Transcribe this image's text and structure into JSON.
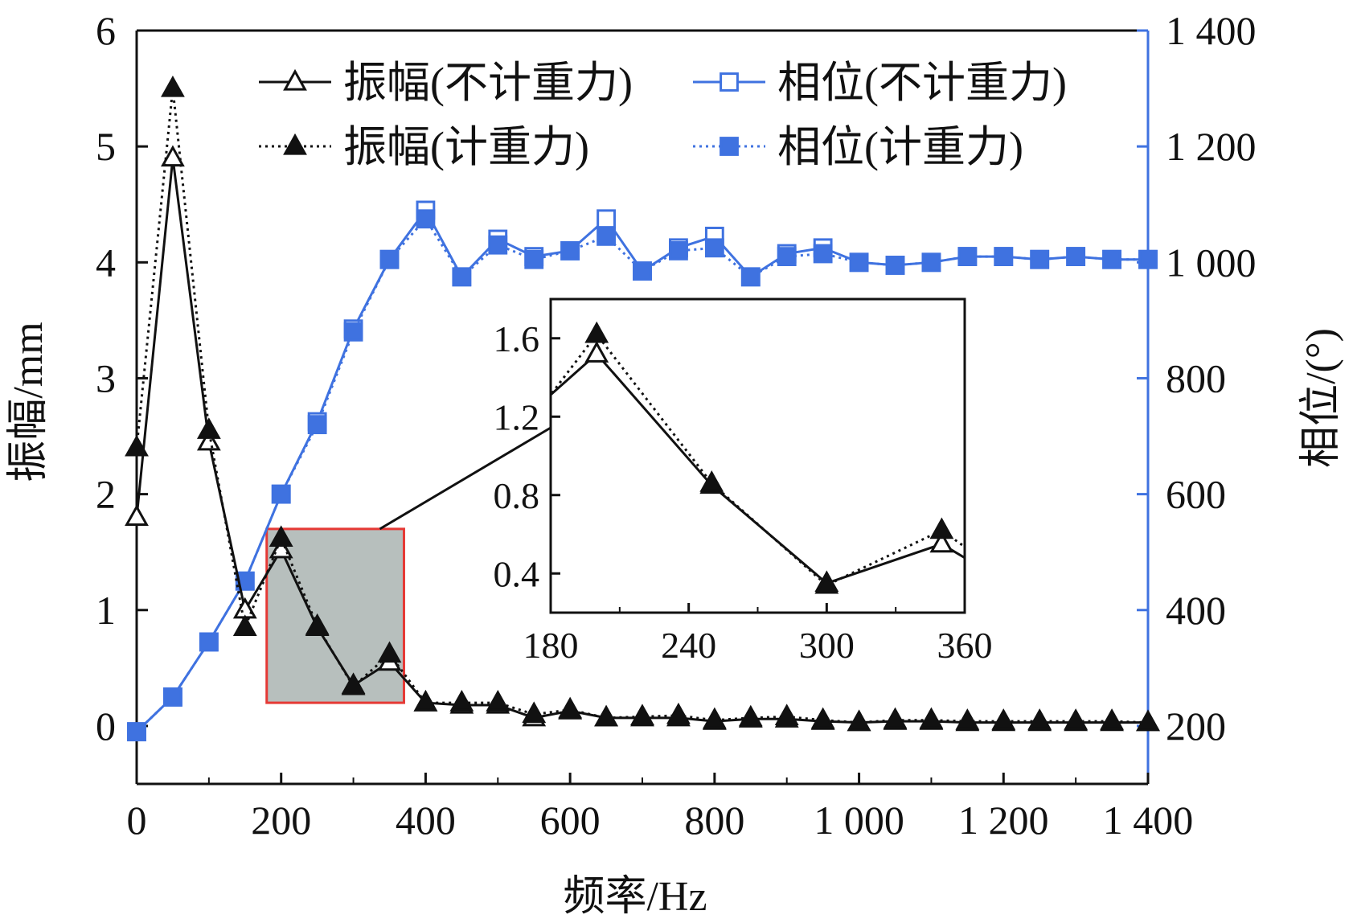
{
  "chart_data": {
    "type": "line",
    "xlabel": "频率/Hz",
    "ylabel_left": "振幅/mm",
    "ylabel_right": "相位/(°)",
    "xlim": [
      0,
      1400
    ],
    "ylim_left": [
      -0.5,
      6
    ],
    "ylim_right": [
      100,
      1400
    ],
    "x_ticks": [
      0,
      200,
      400,
      600,
      800,
      1000,
      1200,
      1400
    ],
    "x_tick_labels": [
      "0",
      "200",
      "400",
      "600",
      "800",
      "1 000",
      "1 200",
      "1 400"
    ],
    "y_left_ticks": [
      0,
      1,
      2,
      3,
      4,
      5,
      6
    ],
    "y_left_tick_labels": [
      "0",
      "1",
      "2",
      "3",
      "4",
      "5",
      "6"
    ],
    "y_right_ticks": [
      200,
      400,
      600,
      800,
      1000,
      1200,
      1400
    ],
    "y_right_tick_labels": [
      "200",
      "400",
      "600",
      "800",
      "1 000",
      "1 200",
      "1 400"
    ],
    "x": [
      0,
      50,
      100,
      150,
      200,
      250,
      300,
      350,
      400,
      450,
      500,
      550,
      600,
      650,
      700,
      750,
      800,
      850,
      900,
      950,
      1000,
      1050,
      1100,
      1150,
      1200,
      1250,
      1300,
      1350,
      1400
    ],
    "series": [
      {
        "name": "振幅(不计重力)",
        "axis": "left",
        "color": "#111111",
        "marker": "triangle-open",
        "line": "solid",
        "values": [
          1.8,
          4.9,
          2.45,
          1.0,
          1.52,
          0.85,
          0.35,
          0.55,
          0.2,
          0.18,
          0.18,
          0.07,
          0.13,
          0.07,
          0.07,
          0.07,
          0.04,
          0.06,
          0.06,
          0.04,
          0.03,
          0.04,
          0.04,
          0.03,
          0.03,
          0.03,
          0.03,
          0.03,
          0.03
        ]
      },
      {
        "name": "振幅(计重力)",
        "axis": "left",
        "color": "#111111",
        "marker": "triangle-filled",
        "line": "dotted",
        "values": [
          2.4,
          5.5,
          2.55,
          0.85,
          1.62,
          0.86,
          0.34,
          0.62,
          0.2,
          0.2,
          0.2,
          0.1,
          0.14,
          0.07,
          0.08,
          0.09,
          0.05,
          0.07,
          0.08,
          0.05,
          0.03,
          0.05,
          0.05,
          0.04,
          0.04,
          0.04,
          0.04,
          0.04,
          0.03
        ]
      },
      {
        "name": "相位(不计重力)",
        "axis": "right",
        "color": "#3f72e0",
        "marker": "square-open",
        "line": "solid",
        "values": [
          190,
          250,
          345,
          450,
          600,
          725,
          885,
          1005,
          1090,
          975,
          1040,
          1010,
          1020,
          1075,
          985,
          1025,
          1045,
          975,
          1015,
          1025,
          1000,
          995,
          1000,
          1010,
          1010,
          1005,
          1010,
          1005,
          1005
        ]
      },
      {
        "name": "相位(计重力)",
        "axis": "right",
        "color": "#3f72e0",
        "marker": "square-filled",
        "line": "dotted",
        "values": [
          190,
          250,
          345,
          450,
          600,
          720,
          880,
          1005,
          1075,
          975,
          1030,
          1005,
          1020,
          1045,
          985,
          1020,
          1025,
          975,
          1010,
          1015,
          1000,
          995,
          1000,
          1010,
          1010,
          1005,
          1010,
          1005,
          1005
        ]
      }
    ],
    "zoom_box": {
      "x_range": [
        180,
        370
      ],
      "y_range": [
        0.2,
        1.7
      ],
      "color": "#e53935",
      "fill": "#b7bfbd"
    },
    "inset": {
      "xlim": [
        180,
        360
      ],
      "ylim": [
        0.2,
        1.8
      ],
      "x_ticks": [
        180,
        240,
        300,
        360
      ],
      "x_tick_labels": [
        "180",
        "240",
        "300",
        "360"
      ],
      "y_ticks": [
        0.4,
        0.8,
        1.2,
        1.6
      ],
      "y_tick_labels": [
        "0.4",
        "0.8",
        "1.2",
        "1.6"
      ]
    }
  }
}
